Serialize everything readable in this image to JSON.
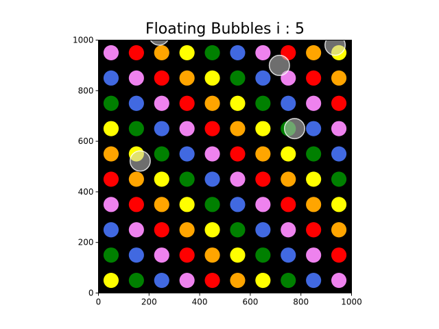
{
  "title": "Floating Bubbles i : 5",
  "axes": {
    "xlim": [
      0,
      1000
    ],
    "ylim": [
      0,
      1000
    ],
    "x_ticks": [
      "0",
      "200",
      "400",
      "600",
      "800",
      "1000"
    ],
    "y_ticks": [
      "0",
      "200",
      "400",
      "600",
      "800",
      "1000"
    ],
    "background": "#000000"
  },
  "palette": {
    "red": "#ff0000",
    "green": "#008000",
    "blue": "#4169e1",
    "yellow": "#ffff00",
    "orange": "#ffa500",
    "violet": "#ee82ee",
    "bubble": "#c8c8c8"
  },
  "grid": {
    "x_centers": [
      50,
      150,
      250,
      350,
      450,
      550,
      650,
      750,
      850,
      950
    ],
    "y_centers": [
      950,
      850,
      750,
      650,
      550,
      450,
      350,
      250,
      150,
      50
    ],
    "radius": 30,
    "rows": [
      [
        "violet",
        "red",
        "orange",
        "yellow",
        "green",
        "blue",
        "violet",
        "red",
        "orange",
        "yellow"
      ],
      [
        "blue",
        "violet",
        "red",
        "orange",
        "yellow",
        "green",
        "blue",
        "violet",
        "red",
        "orange"
      ],
      [
        "green",
        "blue",
        "violet",
        "red",
        "orange",
        "yellow",
        "green",
        "blue",
        "violet",
        "red"
      ],
      [
        "yellow",
        "green",
        "blue",
        "violet",
        "red",
        "orange",
        "yellow",
        "green",
        "blue",
        "violet"
      ],
      [
        "orange",
        "yellow",
        "green",
        "blue",
        "violet",
        "red",
        "orange",
        "yellow",
        "green",
        "blue"
      ],
      [
        "red",
        "orange",
        "yellow",
        "green",
        "blue",
        "violet",
        "red",
        "orange",
        "yellow",
        "green"
      ],
      [
        "violet",
        "red",
        "orange",
        "yellow",
        "green",
        "blue",
        "violet",
        "red",
        "orange",
        "yellow"
      ],
      [
        "blue",
        "violet",
        "red",
        "orange",
        "yellow",
        "green",
        "blue",
        "violet",
        "red",
        "orange"
      ],
      [
        "green",
        "blue",
        "violet",
        "red",
        "orange",
        "yellow",
        "green",
        "blue",
        "violet",
        "red"
      ],
      [
        "yellow",
        "green",
        "blue",
        "violet",
        "red",
        "orange",
        "yellow",
        "green",
        "blue",
        "violet"
      ]
    ]
  },
  "bubbles": [
    {
      "x": 240,
      "y": 1020,
      "r": 40
    },
    {
      "x": 935,
      "y": 980,
      "r": 40
    },
    {
      "x": 715,
      "y": 900,
      "r": 40
    },
    {
      "x": 775,
      "y": 650,
      "r": 40
    },
    {
      "x": 165,
      "y": 522,
      "r": 40
    }
  ]
}
